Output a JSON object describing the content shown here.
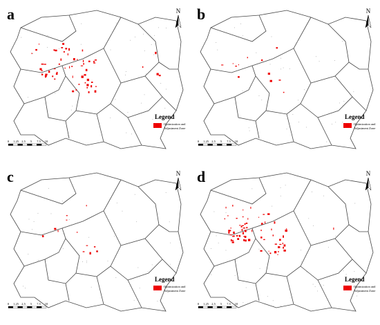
{
  "panels": [
    {
      "label": "a",
      "north": "N",
      "legend_title": "Legend",
      "legend_item": [
        "Optimization and",
        "Adjustment Zone"
      ],
      "scale_labels": [
        "0",
        "1.25",
        "2.5",
        "5",
        "7.5",
        "10"
      ]
    },
    {
      "label": "b",
      "north": "N",
      "legend_title": "Legend",
      "legend_item": [
        "Optimization and",
        "Adjustment Zone"
      ],
      "scale_labels": [
        "0",
        "1.25",
        "2.5",
        "5",
        "7.5",
        "10"
      ]
    },
    {
      "label": "c",
      "north": "N",
      "legend_title": "Legend",
      "legend_item": [
        "Optimization and",
        "Adjustment Zone"
      ],
      "scale_labels": [
        "0",
        "1.25",
        "2.5",
        "5",
        "7.5",
        "10"
      ]
    },
    {
      "label": "d",
      "north": "N",
      "legend_title": "Legend",
      "legend_item": [
        "Optimization and",
        "Adjustment Zone"
      ],
      "scale_labels": [
        "0",
        "1.25",
        "2.5",
        "5",
        "7.5",
        "10"
      ]
    }
  ]
}
